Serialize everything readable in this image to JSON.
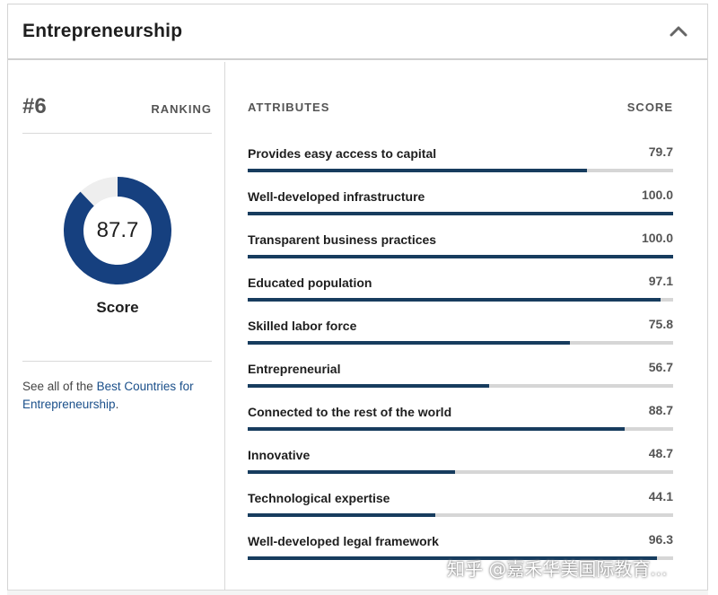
{
  "panel": {
    "title": "Entrepreneurship",
    "collapse_icon": "chevron-up-icon"
  },
  "summary": {
    "rank": "#6",
    "rank_label": "RANKING",
    "score_value": "87.7",
    "score_fraction": 0.877,
    "score_label": "Score",
    "see_all_prefix": "See all of the ",
    "see_all_link": "Best Countries for Entrepreneurship",
    "see_all_suffix": "."
  },
  "colors": {
    "accent": "#173c5e",
    "donut_fill": "#16407f",
    "track": "#d6d6d6",
    "donut_track": "#eeeeee",
    "link": "#1a4f8a"
  },
  "table": {
    "attributes_header": "ATTRIBUTES",
    "score_header": "SCORE",
    "rows": [
      {
        "name": "Provides easy access to capital",
        "score": "79.7",
        "fraction": 0.797
      },
      {
        "name": "Well-developed infrastructure",
        "score": "100.0",
        "fraction": 1.0
      },
      {
        "name": "Transparent business practices",
        "score": "100.0",
        "fraction": 1.0
      },
      {
        "name": "Educated population",
        "score": "97.1",
        "fraction": 0.971
      },
      {
        "name": "Skilled labor force",
        "score": "75.8",
        "fraction": 0.758
      },
      {
        "name": "Entrepreneurial",
        "score": "56.7",
        "fraction": 0.567
      },
      {
        "name": "Connected to the rest of the world",
        "score": "88.7",
        "fraction": 0.887
      },
      {
        "name": "Innovative",
        "score": "48.7",
        "fraction": 0.487
      },
      {
        "name": "Technological expertise",
        "score": "44.1",
        "fraction": 0.441
      },
      {
        "name": "Well-developed legal framework",
        "score": "96.3",
        "fraction": 0.963
      }
    ]
  },
  "watermark": "知乎 @嘉禾华美国际教育..."
}
